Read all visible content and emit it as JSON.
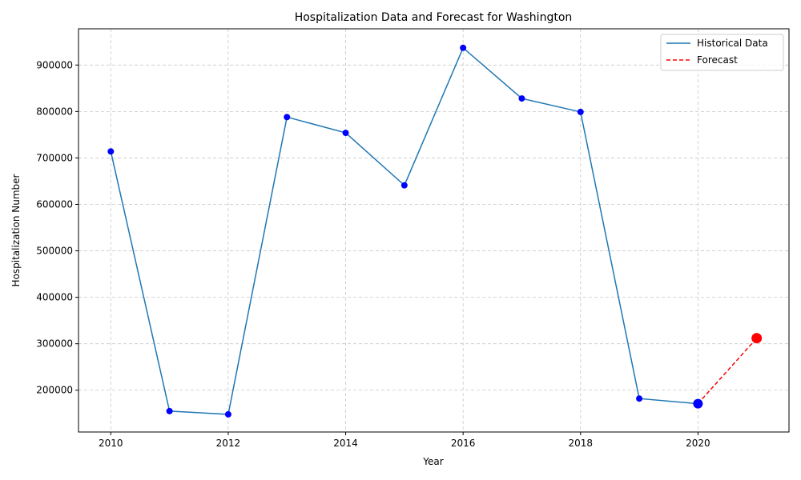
{
  "chart_data": {
    "type": "line",
    "title": "Hospitalization Data and Forecast for Washington",
    "xlabel": "Year",
    "ylabel": "Hospitalization Number",
    "xlim": [
      2009.45,
      2021.55
    ],
    "ylim": [
      110000,
      978000
    ],
    "xticks": [
      2010,
      2012,
      2014,
      2016,
      2018,
      2020
    ],
    "yticks": [
      200000,
      300000,
      400000,
      500000,
      600000,
      700000,
      800000,
      900000
    ],
    "grid": true,
    "legend_position": "top-right",
    "series": [
      {
        "name": "Historical Data",
        "style": "solid",
        "color": "#1f77b4",
        "marker_color": "#0000ff",
        "x": [
          2010,
          2011,
          2012,
          2013,
          2014,
          2015,
          2016,
          2017,
          2018,
          2019,
          2020
        ],
        "y": [
          714000,
          155000,
          148000,
          788000,
          754000,
          641000,
          937000,
          828000,
          799000,
          182000,
          171000
        ]
      },
      {
        "name": "Forecast",
        "style": "dashed",
        "color": "#ff0000",
        "marker_color": "#ff0000",
        "x": [
          2020,
          2021
        ],
        "y": [
          171000,
          312000
        ]
      }
    ]
  }
}
